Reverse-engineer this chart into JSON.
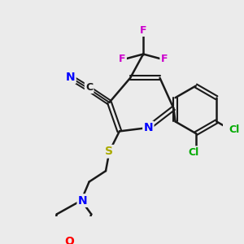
{
  "bg_color": "#ebebeb",
  "bond_color": "#1a1a1a",
  "bond_lw": 1.8,
  "atom_colors": {
    "N": "#0000ff",
    "O": "#ff0000",
    "S": "#aaaa00",
    "F": "#cc00cc",
    "Cl": "#00aa00",
    "C": "#1a1a1a",
    "N_triple": "#0000ff"
  },
  "font_size": 9,
  "figsize": [
    3.0,
    3.0
  ],
  "dpi": 100
}
